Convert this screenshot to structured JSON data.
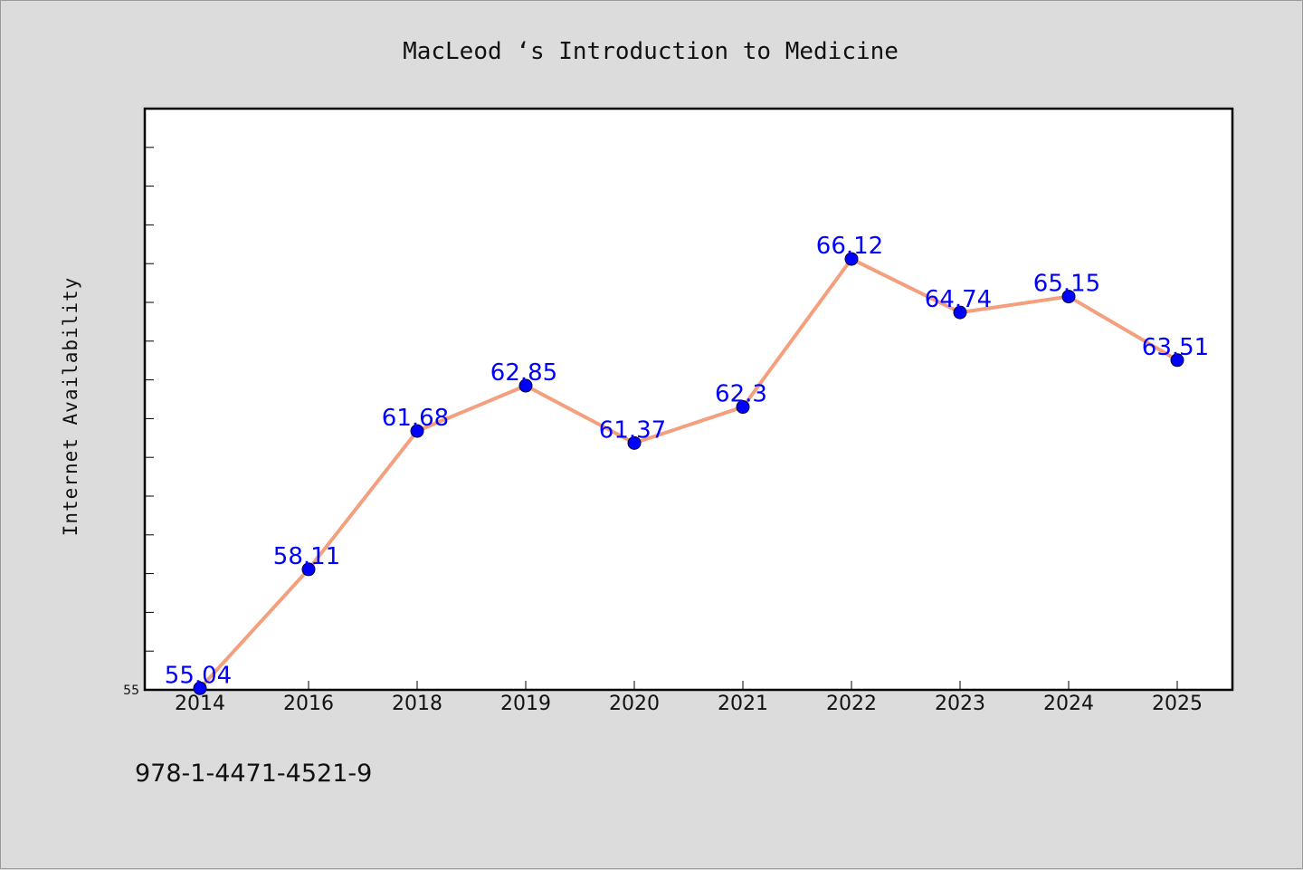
{
  "chart_data": {
    "type": "line",
    "title": "MacLeod ‘s Introduction to Medicine",
    "xlabel": "",
    "ylabel": "Internet Availability",
    "categories": [
      "2014",
      "2016",
      "2018",
      "2019",
      "2020",
      "2021",
      "2022",
      "2023",
      "2024",
      "2025"
    ],
    "series": [
      {
        "values": [
          55.04,
          58.11,
          61.68,
          62.85,
          61.37,
          62.3,
          66.12,
          64.74,
          65.15,
          63.51
        ]
      }
    ],
    "data_labels": [
      "55.04",
      "58.11",
      "61.68",
      "62.85",
      "61.37",
      "62.3",
      "66.12",
      "64.74",
      "65.15",
      "63.51"
    ],
    "ylim": [
      55,
      70
    ],
    "y_tick_labels": [
      "55"
    ],
    "grid": false,
    "colors": {
      "line": "#f4a07e",
      "marker": "#0000ff",
      "label": "#0000ff"
    }
  },
  "footer": {
    "text": "978-1-4471-4521-9"
  }
}
